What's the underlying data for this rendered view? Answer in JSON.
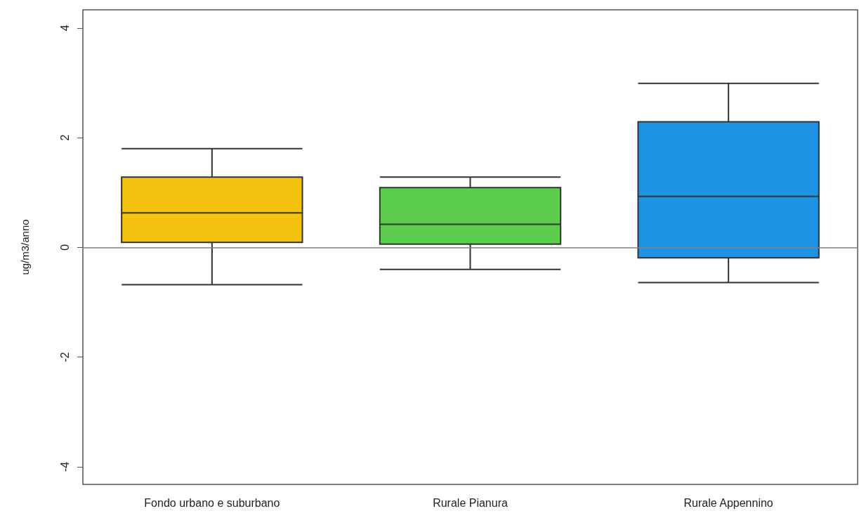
{
  "chart_data": {
    "type": "box",
    "ylabel": "ug/m3/anno",
    "categories": [
      "Fondo urbano e suburbano",
      "Rurale Pianura",
      "Rurale Appennino"
    ],
    "boxes": [
      {
        "low": -0.68,
        "q1": 0.09,
        "median": 0.63,
        "q3": 1.28,
        "high": 1.8
      },
      {
        "low": -0.4,
        "q1": 0.06,
        "median": 0.42,
        "q3": 1.09,
        "high": 1.28
      },
      {
        "low": -0.64,
        "q1": -0.19,
        "median": 0.93,
        "q3": 2.29,
        "high": 2.99
      }
    ],
    "colors": [
      "#f5c30f",
      "#5ccc4c",
      "#1f93e3"
    ],
    "ylim": [
      -4.32,
      4.33
    ],
    "yticks": [
      -4,
      -2,
      0,
      2,
      4
    ],
    "ref_lines": [
      {
        "axis": "y",
        "value": 0,
        "color": "#808080"
      }
    ],
    "grid": false
  }
}
